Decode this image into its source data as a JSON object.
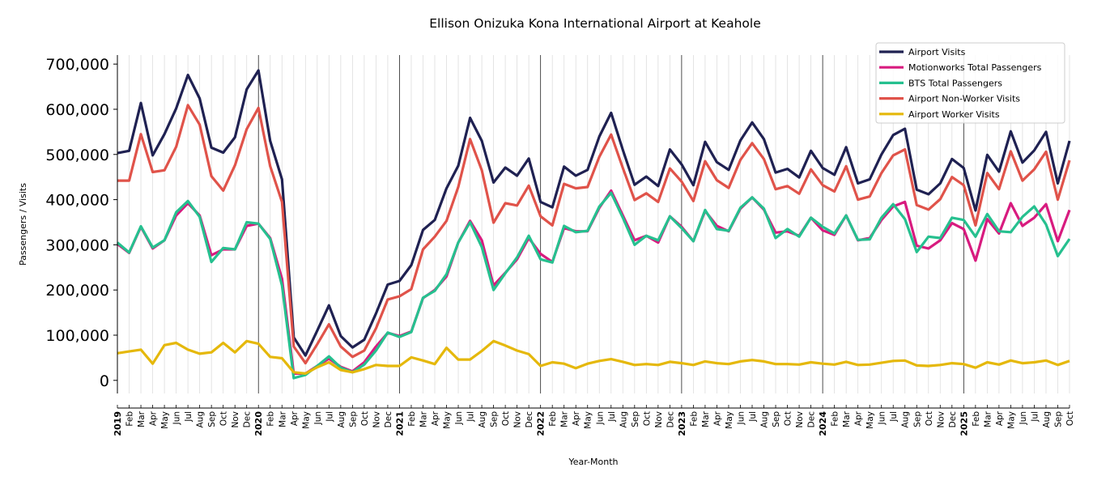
{
  "chart_data": {
    "type": "line",
    "title": "Ellison Onizuka Kona International Airport at Keahole",
    "xlabel": "Year-Month",
    "ylabel": "Passengers / Visits",
    "ylim": [
      -29000,
      720000
    ],
    "yticks": [
      0,
      100000,
      200000,
      300000,
      400000,
      500000,
      600000,
      700000
    ],
    "ytick_labels": [
      "0",
      "100,000",
      "200,000",
      "300,000",
      "400,000",
      "500,000",
      "600,000",
      "700,000"
    ],
    "start": {
      "year": 2019,
      "month": 1
    },
    "month_labels": [
      "Jan",
      "Feb",
      "Mar",
      "Apr",
      "May",
      "Jun",
      "Jul",
      "Aug",
      "Sep",
      "Oct",
      "Nov",
      "Dec"
    ],
    "grid": "vertical monthly, year lines dark",
    "legend_position": "top-right",
    "series": [
      {
        "name": "Airport Visits",
        "color": "#1f2152",
        "values": [
          503000,
          508000,
          614000,
          498000,
          545000,
          602000,
          676000,
          624000,
          515000,
          504000,
          538000,
          644000,
          686000,
          530000,
          445000,
          95000,
          55000,
          110000,
          166000,
          98000,
          73000,
          90000,
          148000,
          212000,
          220000,
          255000,
          333000,
          355000,
          425000,
          475000,
          581000,
          530000,
          438000,
          471000,
          453000,
          491000,
          395000,
          383000,
          473000,
          453000,
          466000,
          540000,
          592000,
          510000,
          433000,
          451000,
          430000,
          511000,
          478000,
          432000,
          528000,
          483000,
          466000,
          531000,
          571000,
          534000,
          460000,
          468000,
          449000,
          508000,
          470000,
          455000,
          516000,
          436000,
          445000,
          500000,
          543000,
          557000,
          422000,
          412000,
          436000,
          490000,
          470000,
          376000,
          499000,
          462000,
          551000,
          482000,
          509000,
          550000,
          436000,
          530000
        ]
      },
      {
        "name": "Motionworks Total Passengers",
        "color": "#d81b7f",
        "values": [
          302000,
          282000,
          340000,
          292000,
          310000,
          365000,
          392000,
          365000,
          277000,
          290000,
          290000,
          342000,
          347000,
          315000,
          225000,
          15000,
          15000,
          32000,
          48000,
          30000,
          20000,
          40000,
          75000,
          105000,
          98000,
          108000,
          182000,
          200000,
          230000,
          305000,
          353000,
          310000,
          210000,
          238000,
          268000,
          315000,
          280000,
          262000,
          337000,
          330000,
          330000,
          382000,
          420000,
          365000,
          310000,
          320000,
          305000,
          363000,
          340000,
          308000,
          375000,
          342000,
          330000,
          380000,
          405000,
          378000,
          327000,
          330000,
          320000,
          360000,
          332000,
          322000,
          365000,
          310000,
          315000,
          355000,
          385000,
          395000,
          298000,
          292000,
          310000,
          348000,
          335000,
          265000,
          357000,
          325000,
          392000,
          342000,
          360000,
          390000,
          308000,
          377000
        ]
      },
      {
        "name": "BTS Total Passengers",
        "color": "#26c08f",
        "values": [
          305000,
          283000,
          341000,
          294000,
          310000,
          372000,
          397000,
          362000,
          262000,
          293000,
          290000,
          350000,
          347000,
          313000,
          210000,
          5000,
          12000,
          32000,
          53000,
          28000,
          18000,
          35000,
          66000,
          106000,
          96000,
          107000,
          183000,
          198000,
          235000,
          305000,
          350000,
          295000,
          200000,
          237000,
          272000,
          320000,
          268000,
          261000,
          342000,
          328000,
          331000,
          385000,
          415000,
          360000,
          300000,
          320000,
          310000,
          363000,
          337000,
          308000,
          377000,
          335000,
          331000,
          382000,
          405000,
          380000,
          315000,
          335000,
          318000,
          360000,
          340000,
          325000,
          365000,
          311000,
          312000,
          360000,
          390000,
          357000,
          284000,
          318000,
          315000,
          360000,
          355000,
          318000,
          368000,
          330000,
          328000,
          362000,
          385000,
          345000,
          275000,
          313000
        ]
      },
      {
        "name": "Airport Non-Worker Visits",
        "color": "#e0534a",
        "values": [
          442000,
          442000,
          545000,
          461000,
          465000,
          517000,
          609000,
          566000,
          452000,
          420000,
          476000,
          556000,
          603000,
          474000,
          395000,
          75000,
          38000,
          80000,
          124000,
          75000,
          52000,
          66000,
          115000,
          179000,
          186000,
          202000,
          290000,
          318000,
          353000,
          428000,
          534000,
          465000,
          349000,
          392000,
          387000,
          431000,
          363000,
          343000,
          435000,
          425000,
          428000,
          495000,
          544000,
          470000,
          399000,
          414000,
          395000,
          469000,
          440000,
          397000,
          485000,
          443000,
          426000,
          488000,
          525000,
          490000,
          423000,
          430000,
          413000,
          467000,
          432000,
          418000,
          474000,
          400000,
          407000,
          459000,
          498000,
          511000,
          388000,
          378000,
          401000,
          450000,
          432000,
          343000,
          459000,
          423000,
          507000,
          442000,
          467000,
          506000,
          400000,
          487000
        ]
      },
      {
        "name": "Airport Worker Visits",
        "color": "#e5b80b",
        "values": [
          60000,
          64000,
          68000,
          37000,
          78000,
          83000,
          68000,
          59000,
          62000,
          83000,
          62000,
          87000,
          81000,
          52000,
          49000,
          18000,
          15000,
          29000,
          40000,
          23000,
          18000,
          25000,
          34000,
          32000,
          32000,
          51000,
          44000,
          36000,
          72000,
          46000,
          46000,
          65000,
          87000,
          77000,
          66000,
          58000,
          32000,
          40000,
          37000,
          27000,
          37000,
          43000,
          47000,
          41000,
          34000,
          36000,
          34000,
          41000,
          38000,
          34000,
          42000,
          38000,
          36000,
          42000,
          45000,
          42000,
          36000,
          36000,
          35000,
          40000,
          37000,
          35000,
          41000,
          34000,
          35000,
          39000,
          43000,
          44000,
          33000,
          32000,
          34000,
          38000,
          36000,
          28000,
          40000,
          35000,
          44000,
          38000,
          40000,
          44000,
          34000,
          43000
        ]
      }
    ]
  }
}
